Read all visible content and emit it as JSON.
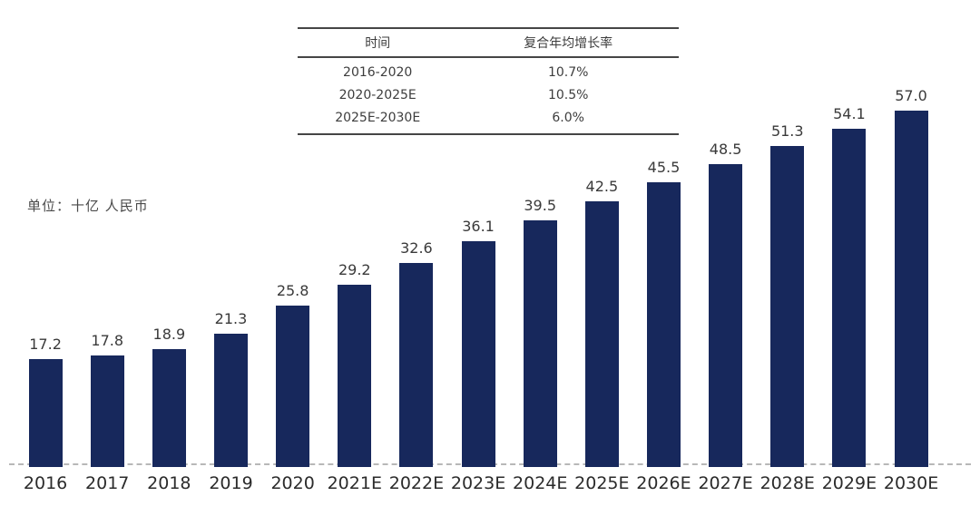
{
  "unit_label": "单位：十亿 人民币",
  "cagr_table": {
    "headers": [
      "时间",
      "复合年均增长率"
    ],
    "rows": [
      {
        "period": "2016-2020",
        "cagr": "10.7%"
      },
      {
        "period": "2020-2025E",
        "cagr": "10.5%"
      },
      {
        "period": "2025E-2030E",
        "cagr": "6.0%"
      }
    ]
  },
  "chart_data": {
    "type": "bar",
    "title": "",
    "xlabel": "",
    "ylabel": "单位：十亿 人民币",
    "categories": [
      "2016",
      "2017",
      "2018",
      "2019",
      "2020",
      "2021E",
      "2022E",
      "2023E",
      "2024E",
      "2025E",
      "2026E",
      "2027E",
      "2028E",
      "2029E",
      "2030E"
    ],
    "values": [
      17.2,
      17.8,
      18.9,
      21.3,
      25.8,
      29.2,
      32.6,
      36.1,
      39.5,
      42.5,
      45.5,
      48.5,
      51.3,
      54.1,
      57.0
    ],
    "value_decimals": 1,
    "ylim": [
      0,
      57
    ],
    "grid": false,
    "legend": "none",
    "baseline_style": "dashed",
    "bar_color": "#17285c",
    "value_label_color": "#3a3a3a",
    "axis_label_color": "#2b2b2b",
    "baseline_color": "#b8b8b8"
  }
}
